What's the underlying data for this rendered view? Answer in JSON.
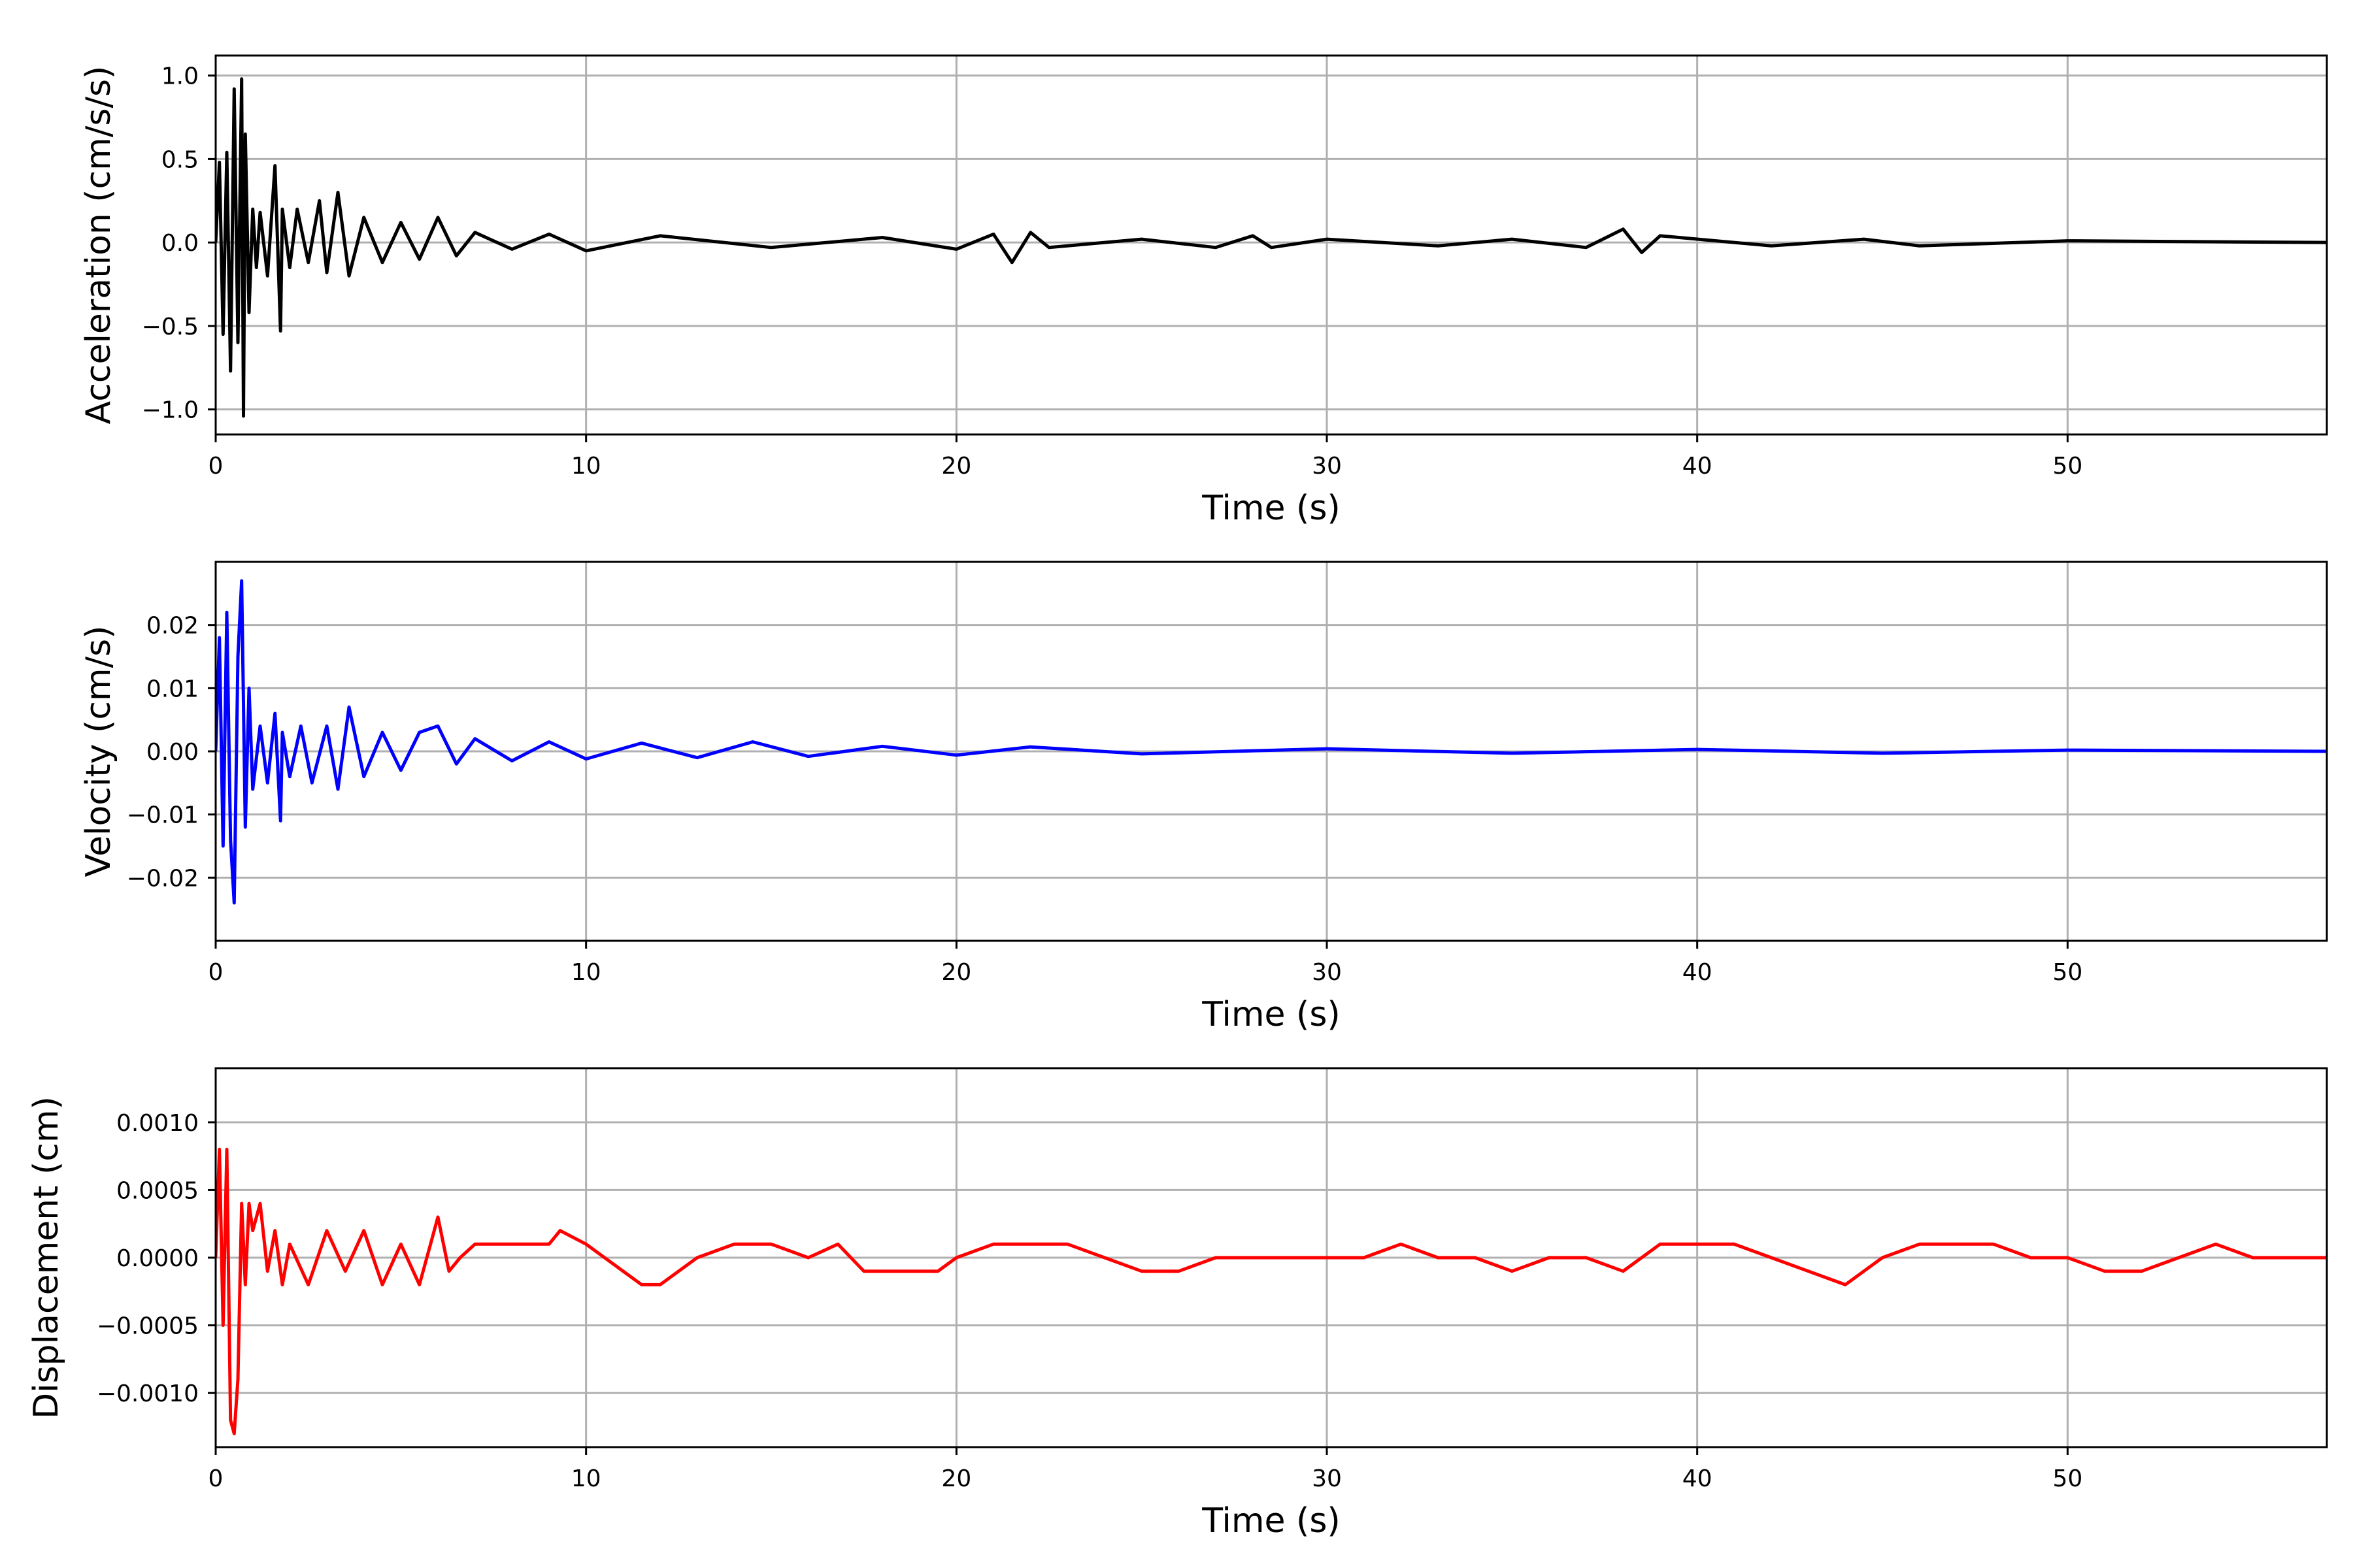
{
  "chart_data": [
    {
      "type": "line",
      "xlabel": "Time (s)",
      "ylabel": "Acceleration (cm/s/s)",
      "xlim": [
        0,
        57
      ],
      "ylim": [
        -1.15,
        1.12
      ],
      "xticks": [
        0,
        10,
        20,
        30,
        40,
        50
      ],
      "xtick_labels": [
        "0",
        "10",
        "20",
        "30",
        "40",
        "50"
      ],
      "yticks": [
        -1.0,
        -0.5,
        0.0,
        0.5,
        1.0
      ],
      "ytick_labels": [
        "−1.0",
        "−0.5",
        "0.0",
        "0.5",
        "1.0"
      ],
      "grid": true,
      "color": "#000000",
      "series": [
        {
          "x": [
            0,
            0.1,
            0.2,
            0.3,
            0.4,
            0.5,
            0.6,
            0.7,
            0.75,
            0.8,
            0.9,
            1.0,
            1.1,
            1.2,
            1.4,
            1.6,
            1.75,
            1.8,
            2.0,
            2.2,
            2.5,
            2.8,
            3.0,
            3.3,
            3.6,
            4.0,
            4.5,
            5.0,
            5.5,
            6.0,
            6.5,
            7.0,
            8.0,
            9.0,
            10.0,
            12.0,
            15.0,
            18.0,
            20.0,
            21.0,
            21.5,
            22.0,
            22.5,
            25.0,
            27.0,
            28.0,
            28.5,
            30.0,
            33.0,
            35.0,
            37.0,
            38.0,
            38.5,
            39.0,
            42.0,
            44.5,
            46.0,
            50.0,
            57.0
          ],
          "y": [
            0.0,
            0.48,
            -0.55,
            0.54,
            -0.77,
            0.92,
            -0.6,
            0.98,
            -1.04,
            0.65,
            -0.42,
            0.2,
            -0.15,
            0.18,
            -0.2,
            0.46,
            -0.53,
            0.2,
            -0.15,
            0.2,
            -0.12,
            0.25,
            -0.18,
            0.3,
            -0.2,
            0.15,
            -0.12,
            0.12,
            -0.1,
            0.15,
            -0.08,
            0.06,
            -0.04,
            0.05,
            -0.05,
            0.04,
            -0.03,
            0.03,
            -0.04,
            0.05,
            -0.12,
            0.06,
            -0.03,
            0.02,
            -0.03,
            0.04,
            -0.03,
            0.02,
            -0.02,
            0.02,
            -0.03,
            0.08,
            -0.06,
            0.04,
            -0.02,
            0.02,
            -0.02,
            0.01,
            0.0
          ]
        }
      ]
    },
    {
      "type": "line",
      "xlabel": "Time (s)",
      "ylabel": "Velocity (cm/s)",
      "xlim": [
        0,
        57
      ],
      "ylim": [
        -0.03,
        0.03
      ],
      "xticks": [
        0,
        10,
        20,
        30,
        40,
        50
      ],
      "xtick_labels": [
        "0",
        "10",
        "20",
        "30",
        "40",
        "50"
      ],
      "yticks": [
        -0.02,
        -0.01,
        0.0,
        0.01,
        0.02
      ],
      "ytick_labels": [
        "−0.02",
        "−0.01",
        "0.00",
        "0.01",
        "0.02"
      ],
      "grid": true,
      "color": "#0000ff",
      "series": [
        {
          "x": [
            0,
            0.1,
            0.2,
            0.3,
            0.4,
            0.5,
            0.6,
            0.7,
            0.8,
            0.9,
            1.0,
            1.2,
            1.4,
            1.6,
            1.75,
            1.8,
            2.0,
            2.3,
            2.6,
            3.0,
            3.3,
            3.6,
            4.0,
            4.5,
            5.0,
            5.5,
            6.0,
            6.5,
            7.0,
            8.0,
            9.0,
            10.0,
            11.5,
            13.0,
            14.5,
            16.0,
            18.0,
            20.0,
            22.0,
            25.0,
            30.0,
            35.0,
            40.0,
            45.0,
            50.0,
            57.0
          ],
          "y": [
            0.0,
            0.018,
            -0.015,
            0.022,
            -0.014,
            -0.024,
            0.015,
            0.027,
            -0.012,
            0.01,
            -0.006,
            0.004,
            -0.005,
            0.006,
            -0.011,
            0.003,
            -0.004,
            0.004,
            -0.005,
            0.004,
            -0.006,
            0.007,
            -0.004,
            0.003,
            -0.003,
            0.003,
            0.004,
            -0.002,
            0.002,
            -0.0015,
            0.0015,
            -0.0012,
            0.0013,
            -0.001,
            0.0015,
            -0.0008,
            0.0008,
            -0.0006,
            0.0007,
            -0.0004,
            0.0004,
            -0.0003,
            0.0003,
            -0.0003,
            0.0002,
            0.0
          ]
        }
      ]
    },
    {
      "type": "line",
      "xlabel": "Time (s)",
      "ylabel": "Displacement (cm)",
      "xlim": [
        0,
        57
      ],
      "ylim": [
        -0.0014,
        0.0014
      ],
      "xticks": [
        0,
        10,
        20,
        30,
        40,
        50
      ],
      "xtick_labels": [
        "0",
        "10",
        "20",
        "30",
        "40",
        "50"
      ],
      "yticks": [
        -0.001,
        -0.0005,
        0.0,
        0.0005,
        0.001
      ],
      "ytick_labels": [
        "−0.0010",
        "−0.0005",
        "0.0000",
        "0.0005",
        "0.0010"
      ],
      "grid": true,
      "color": "#ff0000",
      "series": [
        {
          "x": [
            0,
            0.1,
            0.2,
            0.3,
            0.4,
            0.5,
            0.6,
            0.7,
            0.8,
            0.9,
            1.0,
            1.2,
            1.4,
            1.6,
            1.8,
            2.0,
            2.5,
            3.0,
            3.5,
            4.0,
            4.5,
            5.0,
            5.5,
            5.8,
            6.0,
            6.3,
            6.6,
            7.0,
            8.0,
            9.0,
            9.3,
            10.0,
            10.5,
            11.0,
            11.5,
            12.0,
            13.0,
            14.0,
            15.0,
            16.0,
            16.8,
            17.5,
            18.5,
            19.5,
            20.0,
            21.0,
            22.0,
            23.0,
            24.0,
            25.0,
            26.0,
            27.0,
            28.0,
            29.0,
            30.0,
            31.0,
            32.0,
            33.0,
            34.0,
            35.0,
            36.0,
            37.0,
            38.0,
            39.0,
            40.0,
            41.0,
            42.0,
            43.0,
            44.0,
            45.0,
            46.0,
            47.0,
            48.0,
            49.0,
            50.0,
            51.0,
            52.0,
            53.0,
            54.0,
            55.0,
            56.0,
            57.0
          ],
          "y": [
            0.0,
            0.0008,
            -0.0005,
            0.0008,
            -0.0012,
            -0.0013,
            -0.0009,
            0.0004,
            -0.0002,
            0.0004,
            0.0002,
            0.0004,
            -0.0001,
            0.0002,
            -0.0002,
            0.0001,
            -0.0002,
            0.0002,
            -0.0001,
            0.0002,
            -0.0002,
            0.0001,
            -0.0002,
            0.0001,
            0.0003,
            -0.0001,
            0.0,
            0.0001,
            0.0001,
            0.0001,
            0.0002,
            0.0001,
            0.0,
            -0.0001,
            -0.0002,
            -0.0002,
            0.0,
            0.0001,
            0.0001,
            0.0,
            0.0001,
            -0.0001,
            -0.0001,
            -0.0001,
            0.0,
            0.0001,
            0.0001,
            0.0001,
            0.0,
            -0.0001,
            -0.0001,
            0.0,
            0.0,
            0.0,
            0.0,
            0.0,
            0.0001,
            0.0,
            0.0,
            -0.0001,
            0.0,
            0.0,
            -0.0001,
            0.0001,
            0.0001,
            0.0001,
            0.0,
            -0.0001,
            -0.0002,
            0.0,
            0.0001,
            0.0001,
            0.0001,
            0.0,
            0.0,
            -0.0001,
            -0.0001,
            0.0,
            0.0001,
            0.0,
            0.0,
            0.0
          ]
        }
      ]
    }
  ]
}
